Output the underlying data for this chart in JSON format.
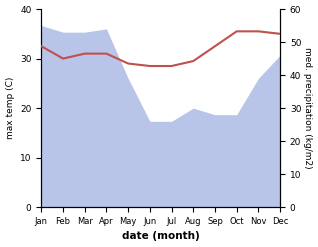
{
  "months": [
    "Jan",
    "Feb",
    "Mar",
    "Apr",
    "May",
    "Jun",
    "Jul",
    "Aug",
    "Sep",
    "Oct",
    "Nov",
    "Dec"
  ],
  "precipitation": [
    55,
    53,
    53,
    54,
    39,
    26,
    26,
    30,
    28,
    28,
    39,
    46
  ],
  "temperature": [
    32.5,
    30.0,
    31.0,
    31.0,
    29.0,
    28.5,
    28.5,
    29.5,
    32.5,
    35.5,
    35.5,
    35.0
  ],
  "temp_color": "#c0504d",
  "precip_fill_color": "#b8c4e8",
  "xlabel": "date (month)",
  "ylabel_left": "max temp (C)",
  "ylabel_right": "med. precipitation (kg/m2)",
  "ylim_left": [
    0,
    40
  ],
  "ylim_right": [
    0,
    60
  ],
  "yticks_left": [
    0,
    10,
    20,
    30,
    40
  ],
  "yticks_right": [
    0,
    10,
    20,
    30,
    40,
    50,
    60
  ],
  "background_color": "#ffffff",
  "temp_linewidth": 1.5
}
